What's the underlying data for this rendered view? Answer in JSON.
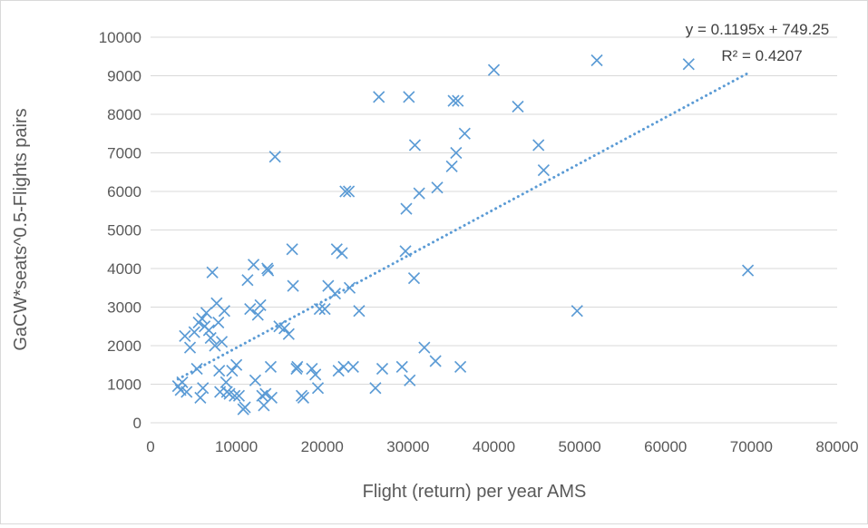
{
  "chart_data": {
    "type": "scatter",
    "xlabel": "Flight  (return) per year AMS",
    "ylabel": "GaCW*seats^0.5-Flights pairs",
    "xlim": [
      0,
      80000
    ],
    "ylim": [
      0,
      10000
    ],
    "x_ticks": [
      "0",
      "10000",
      "20000",
      "30000",
      "40000",
      "50000",
      "60000",
      "70000",
      "80000"
    ],
    "y_ticks": [
      "0",
      "1000",
      "2000",
      "3000",
      "4000",
      "5000",
      "6000",
      "7000",
      "8000",
      "9000",
      "10000"
    ],
    "grid": "horizontal",
    "marker": "x",
    "marker_color": "#5b9bd5",
    "trendline": {
      "type": "linear",
      "slope": 0.1195,
      "intercept": 749.25,
      "style": "dotted",
      "color": "#5b9bd5",
      "equation_label": "y = 0.1195x + 749.25",
      "r2_label": "R² = 0.4207"
    },
    "points": [
      [
        3200,
        950
      ],
      [
        3500,
        850
      ],
      [
        3700,
        1050
      ],
      [
        4200,
        800
      ],
      [
        4000,
        2250
      ],
      [
        4600,
        1950
      ],
      [
        5100,
        2350
      ],
      [
        5400,
        1400
      ],
      [
        5600,
        2600
      ],
      [
        5800,
        650
      ],
      [
        6000,
        2700
      ],
      [
        6100,
        900
      ],
      [
        6300,
        2500
      ],
      [
        6500,
        2850
      ],
      [
        6800,
        2400
      ],
      [
        7200,
        3900
      ],
      [
        7000,
        2200
      ],
      [
        7500,
        2000
      ],
      [
        7700,
        3100
      ],
      [
        7900,
        2600
      ],
      [
        8000,
        1350
      ],
      [
        8100,
        800
      ],
      [
        8300,
        2100
      ],
      [
        8600,
        2900
      ],
      [
        8800,
        1050
      ],
      [
        8900,
        800
      ],
      [
        9200,
        750
      ],
      [
        9500,
        1350
      ],
      [
        9800,
        700
      ],
      [
        10000,
        1500
      ],
      [
        10300,
        700
      ],
      [
        10800,
        350
      ],
      [
        11000,
        400
      ],
      [
        11300,
        3700
      ],
      [
        11600,
        2950
      ],
      [
        12000,
        4100
      ],
      [
        12200,
        1100
      ],
      [
        12500,
        2800
      ],
      [
        12800,
        3050
      ],
      [
        13000,
        700
      ],
      [
        13200,
        450
      ],
      [
        13400,
        750
      ],
      [
        13600,
        4000
      ],
      [
        13700,
        3950
      ],
      [
        14000,
        1450
      ],
      [
        14100,
        650
      ],
      [
        14500,
        6900
      ],
      [
        15000,
        2500
      ],
      [
        15600,
        2450
      ],
      [
        16100,
        2300
      ],
      [
        16500,
        4500
      ],
      [
        16600,
        3550
      ],
      [
        17000,
        1400
      ],
      [
        17100,
        1450
      ],
      [
        17600,
        700
      ],
      [
        17800,
        650
      ],
      [
        18800,
        1400
      ],
      [
        19200,
        1250
      ],
      [
        19500,
        900
      ],
      [
        19700,
        2950
      ],
      [
        20300,
        2950
      ],
      [
        20700,
        3550
      ],
      [
        21500,
        3350
      ],
      [
        21700,
        4500
      ],
      [
        21900,
        1350
      ],
      [
        22300,
        4400
      ],
      [
        22500,
        1450
      ],
      [
        22700,
        6000
      ],
      [
        23100,
        6000
      ],
      [
        23200,
        3500
      ],
      [
        23600,
        1450
      ],
      [
        24300,
        2900
      ],
      [
        26200,
        900
      ],
      [
        26600,
        8450
      ],
      [
        27000,
        1400
      ],
      [
        29300,
        1450
      ],
      [
        29700,
        4450
      ],
      [
        29800,
        5550
      ],
      [
        30100,
        8450
      ],
      [
        30200,
        1100
      ],
      [
        30700,
        3750
      ],
      [
        30800,
        7200
      ],
      [
        31300,
        5950
      ],
      [
        31900,
        1950
      ],
      [
        33200,
        1600
      ],
      [
        33400,
        6100
      ],
      [
        35100,
        6650
      ],
      [
        35300,
        8350
      ],
      [
        35600,
        7000
      ],
      [
        35800,
        8350
      ],
      [
        36100,
        1450
      ],
      [
        36600,
        7500
      ],
      [
        40000,
        9150
      ],
      [
        42800,
        8200
      ],
      [
        45200,
        7200
      ],
      [
        45800,
        6550
      ],
      [
        49700,
        2900
      ],
      [
        52000,
        9400
      ],
      [
        62700,
        9300
      ],
      [
        69600,
        3950
      ]
    ]
  }
}
